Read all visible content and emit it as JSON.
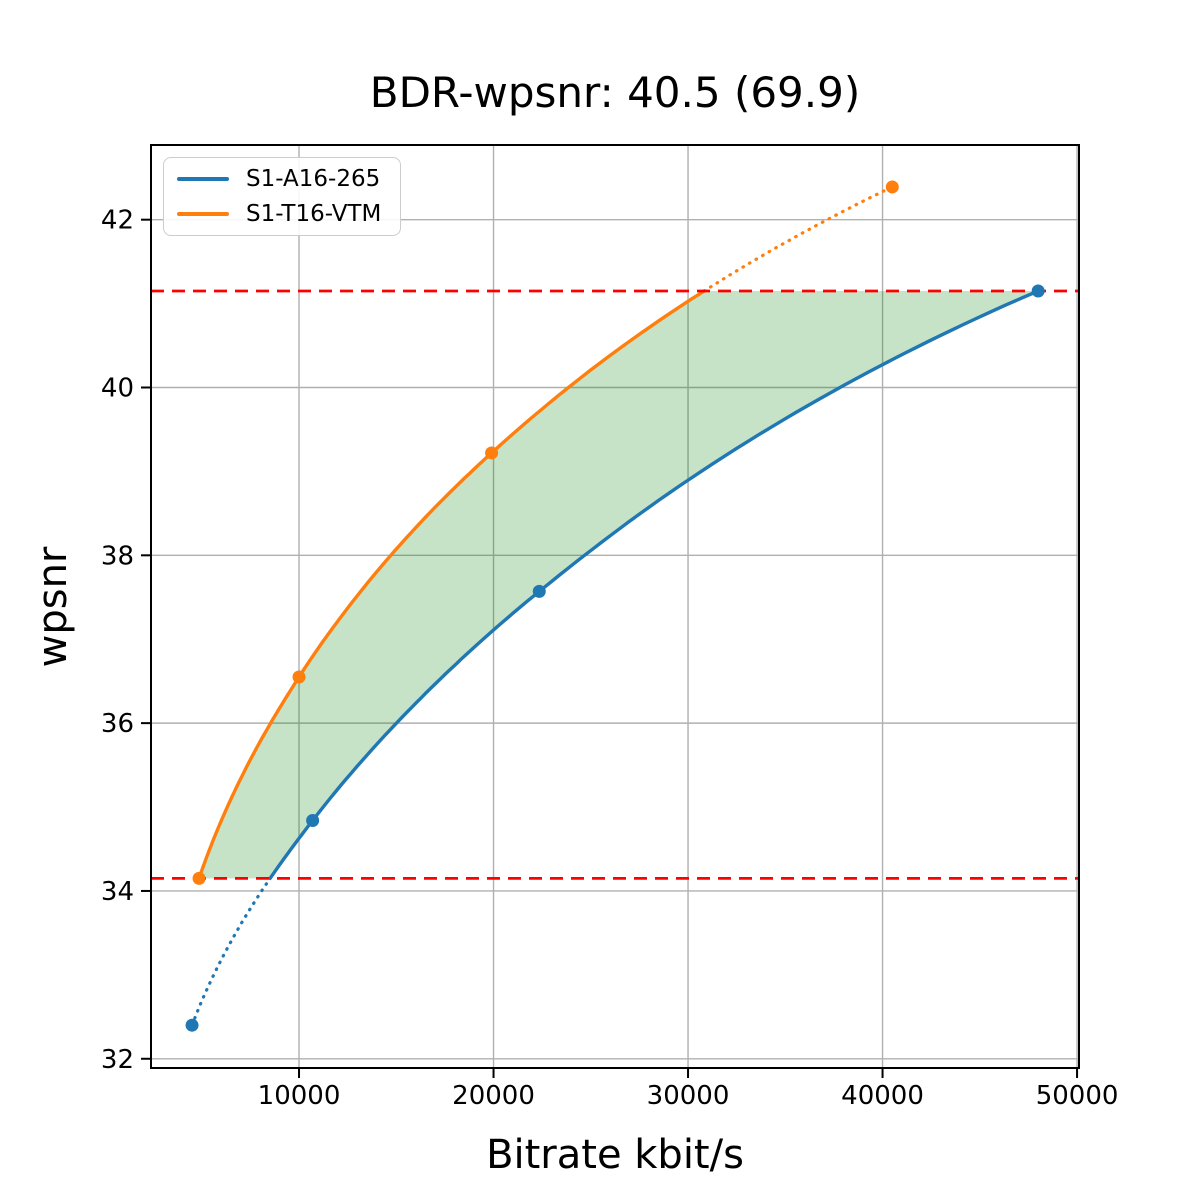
{
  "title": "BDR-wpsnr: 40.5 (69.9)",
  "chart_data": {
    "type": "line",
    "title": "BDR-wpsnr: 40.5 (69.9)",
    "xlabel": "Bitrate kbit/s",
    "ylabel": "wpsnr",
    "xlim": [
      2390,
      50100
    ],
    "ylim": [
      31.89,
      42.89
    ],
    "xticks": [
      10000,
      20000,
      30000,
      40000,
      50000
    ],
    "yticks": [
      32,
      34,
      36,
      38,
      40,
      42
    ],
    "grid": true,
    "grid_color": "#b0b0b0",
    "legend_position": "upper left",
    "legend": [
      "S1-A16-265",
      "S1-T16-VTM"
    ],
    "series": [
      {
        "name": "S1-A16-265",
        "color": "#1f77b4",
        "points": [
          [
            4500,
            32.4
          ],
          [
            10700,
            34.84
          ],
          [
            22350,
            37.57
          ],
          [
            48000,
            41.15
          ]
        ]
      },
      {
        "name": "S1-T16-VTM",
        "color": "#ff7f0e",
        "points": [
          [
            4860,
            34.15
          ],
          [
            10000,
            36.55
          ],
          [
            19900,
            39.22
          ],
          [
            40500,
            42.39
          ]
        ]
      }
    ],
    "overlap_band": {
      "low": 34.15,
      "high": 41.15,
      "line_color": "#ff0000",
      "fill_color": "rgba(0,128,0,0.22)"
    }
  }
}
